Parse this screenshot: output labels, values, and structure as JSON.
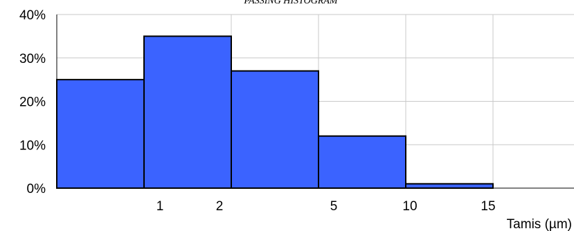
{
  "chart_data": {
    "type": "bar",
    "title": "PASSING HISTOGRAM",
    "xlabel": "Tamis (µm)",
    "ylabel": "",
    "ylim": [
      0,
      40
    ],
    "y_ticks": [
      "0%",
      "10%",
      "20%",
      "30%",
      "40%"
    ],
    "x_ticks": [
      "1",
      "2",
      "5",
      "10",
      "15"
    ],
    "values": [
      25,
      35,
      27,
      12,
      1
    ],
    "bar_color": "#3b63ff",
    "grid": true,
    "legend": "none"
  }
}
